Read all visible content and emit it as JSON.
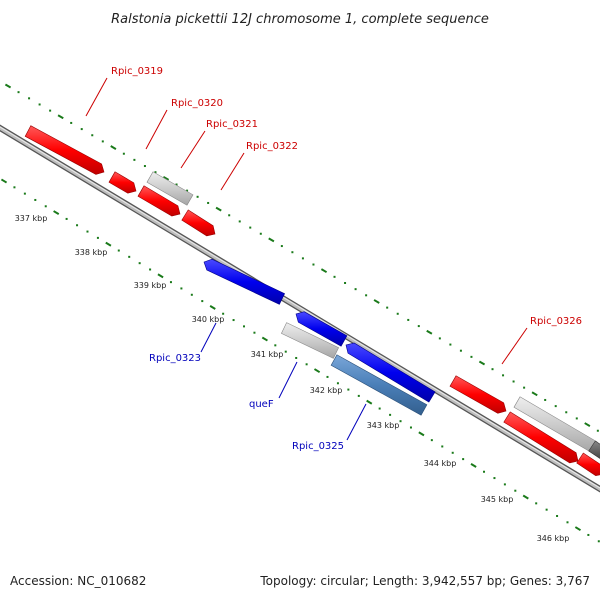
{
  "title": "Ralstonia pickettii 12J chromosome 1, complete sequence",
  "footer": {
    "accession": "Accession: NC_010682",
    "summary": "Topology: circular; Length: 3,942,557 bp; Genes: 3,767"
  },
  "ruler": {
    "ticks": [
      "337 kbp",
      "338 kbp",
      "339 kbp",
      "340 kbp",
      "341 kbp",
      "342 kbp",
      "343 kbp",
      "344 kbp",
      "345 kbp",
      "346 kbp"
    ]
  },
  "genes": {
    "forward": [
      "Rpic_0319",
      "Rpic_0320",
      "Rpic_0321",
      "Rpic_0322",
      "Rpic_0326"
    ],
    "reverse": [
      "Rpic_0323",
      "queF",
      "Rpic_0325"
    ]
  },
  "colors": {
    "forward_cds": "#ff0000",
    "reverse_cds": "#0000ee",
    "other_feature": "#c8c8c8",
    "highlight": "#4a7fb8",
    "forward_label": "#cc0000",
    "reverse_label": "#0000bb",
    "gc_dots": "#1a7a1a",
    "backbone": "#888888"
  }
}
